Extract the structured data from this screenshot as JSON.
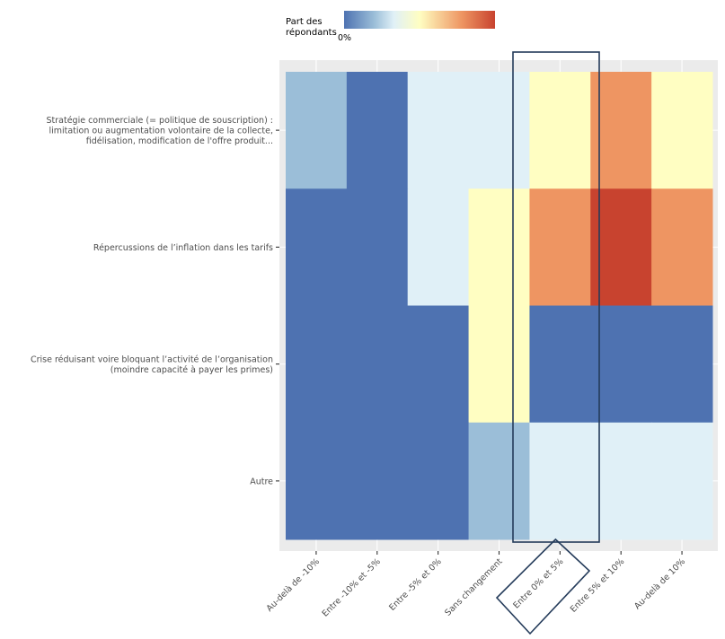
{
  "chart_data": {
    "type": "heatmap",
    "title": "",
    "xlabel": "",
    "ylabel": "",
    "x_categories": [
      "Au-delà de -10%",
      "Entre -10% et -5%",
      "Entre -5% et 0%",
      "Sans changement",
      "Entre 0% et 5%",
      "Entre 5% et 10%",
      "Au-delà de 10%"
    ],
    "y_categories": [
      [
        "Stratégie commerciale (= politique de souscription) :",
        "limitation ou augmentation volontaire de la collecte,",
        "fidélisation, modification de l'offre produit..."
      ],
      [
        "Répercussions de l’inflation dans les tarifs"
      ],
      [
        "Crise réduisant voire bloquant l’activité de l’organisation",
        "(moindre capacité à payer les primes)"
      ],
      [
        "Autre"
      ]
    ],
    "values_relative_scale": "Cell values are read from the color scale as fractions of the legend range (0 = left end labeled 0%, 1 = right end, unlabeled maximum).",
    "values": [
      [
        0.2,
        0.0,
        0.33,
        0.33,
        0.5,
        0.78,
        0.5
      ],
      [
        0.0,
        0.0,
        0.33,
        0.5,
        0.78,
        1.0,
        0.78
      ],
      [
        0.0,
        0.0,
        0.0,
        0.5,
        0.0,
        0.0,
        0.0
      ],
      [
        0.0,
        0.0,
        0.0,
        0.2,
        0.33,
        0.33,
        0.33
      ]
    ],
    "color_scale": {
      "palette": "RdYlBu (reversed)",
      "stops": [
        {
          "at": 0.0,
          "color": "#4E72B1"
        },
        {
          "at": 0.2,
          "color": "#9BBED8"
        },
        {
          "at": 0.33,
          "color": "#E0F0F7"
        },
        {
          "at": 0.5,
          "color": "#FFFEC2"
        },
        {
          "at": 0.78,
          "color": "#EE9562"
        },
        {
          "at": 1.0,
          "color": "#C8432F"
        }
      ]
    },
    "legend": {
      "title": [
        "Part des",
        "répondants"
      ],
      "tick_labels": [
        "0%"
      ],
      "placement": "top"
    },
    "highlight": {
      "column": "Entre 0% et 5%",
      "color": "#243B5A"
    },
    "grid": true,
    "panel_background": "#EBEBEB"
  }
}
